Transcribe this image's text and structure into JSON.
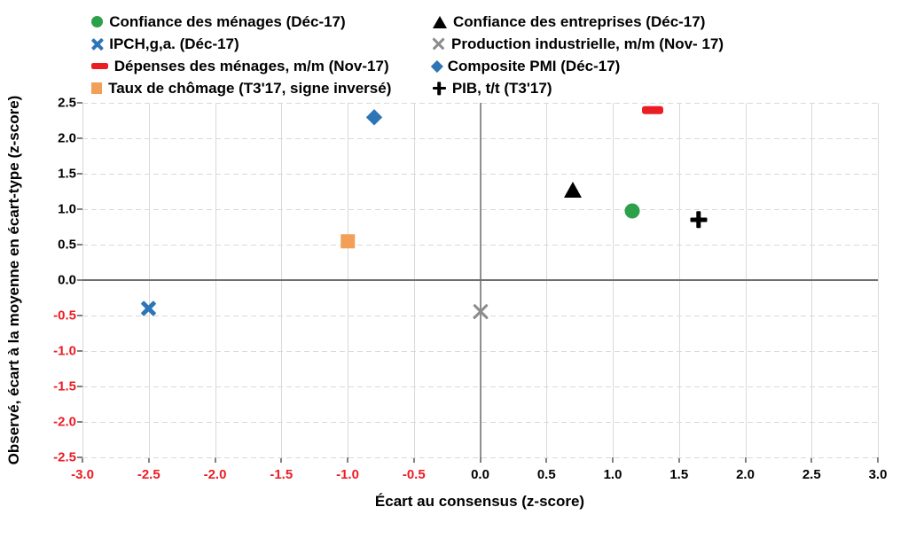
{
  "chart_data": {
    "type": "scatter",
    "title": "",
    "xlabel": "Écart au consensus (z-score)",
    "ylabel": "Observé, écart à la moyenne en écart-type (z-score)",
    "xlim": [
      -3.0,
      3.0
    ],
    "ylim": [
      -2.5,
      2.5
    ],
    "grid": true,
    "legend_position": "top",
    "x_ticks": [
      {
        "v": -3.0,
        "label": "-3.0"
      },
      {
        "v": -2.5,
        "label": "-2.5"
      },
      {
        "v": -2.0,
        "label": "-2.0"
      },
      {
        "v": -1.5,
        "label": "-1.5"
      },
      {
        "v": -1.0,
        "label": "-1.0"
      },
      {
        "v": -0.5,
        "label": "-0.5"
      },
      {
        "v": 0.0,
        "label": "0.0"
      },
      {
        "v": 0.5,
        "label": "0.5"
      },
      {
        "v": 1.0,
        "label": "1.0"
      },
      {
        "v": 1.5,
        "label": "1.5"
      },
      {
        "v": 2.0,
        "label": "2.0"
      },
      {
        "v": 2.5,
        "label": "2.5"
      },
      {
        "v": 3.0,
        "label": "3.0"
      }
    ],
    "y_ticks": [
      {
        "v": 2.5,
        "label": "2.5"
      },
      {
        "v": 2.0,
        "label": "2.0"
      },
      {
        "v": 1.5,
        "label": "1.5"
      },
      {
        "v": 1.0,
        "label": "1.0"
      },
      {
        "v": 0.5,
        "label": "0.5"
      },
      {
        "v": 0.0,
        "label": "0.0"
      },
      {
        "v": -0.5,
        "label": "-0.5"
      },
      {
        "v": -1.0,
        "label": "-1.0"
      },
      {
        "v": -1.5,
        "label": "-1.5"
      },
      {
        "v": -2.0,
        "label": "-2.0"
      },
      {
        "v": -2.5,
        "label": "-2.5"
      }
    ],
    "series": [
      {
        "name": "Confiance des ménages (Déc-17)",
        "marker": "circle",
        "color": "#2DA04A",
        "points": [
          [
            1.15,
            0.98
          ]
        ]
      },
      {
        "name": "Confiance des entreprises (Déc-17)",
        "marker": "triangle",
        "color": "#000000",
        "points": [
          [
            0.7,
            1.27
          ]
        ]
      },
      {
        "name": "IPCH,g,a. (Déc-17)",
        "marker": "x-bold",
        "color": "#2E75B6",
        "points": [
          [
            -2.5,
            -0.4
          ]
        ]
      },
      {
        "name": "Production industrielle, m/m (Nov- 17)",
        "marker": "x-thin",
        "color": "#8C8C8C",
        "points": [
          [
            0.0,
            -0.45
          ]
        ]
      },
      {
        "name": "Dépenses des ménages, m/m (Nov-17)",
        "marker": "dash",
        "color": "#EC1C24",
        "points": [
          [
            1.3,
            2.4
          ]
        ]
      },
      {
        "name": "Composite PMI (Déc-17)",
        "marker": "diamond",
        "color": "#2E75B6",
        "points": [
          [
            -0.8,
            2.3
          ]
        ]
      },
      {
        "name": "Taux de chômage (T3'17, signe inversé)",
        "marker": "square",
        "color": "#F2A057",
        "points": [
          [
            -1.0,
            0.55
          ]
        ]
      },
      {
        "name": "PIB, t/t (T3'17)",
        "marker": "plus",
        "color": "#000000",
        "points": [
          [
            1.65,
            0.85
          ]
        ]
      }
    ],
    "style": {
      "negative_tick_color": "#EC1C24",
      "positive_tick_color": "#000000",
      "grid_color": "#d9d9d9",
      "zero_line_color": "#6f6f6f"
    }
  }
}
